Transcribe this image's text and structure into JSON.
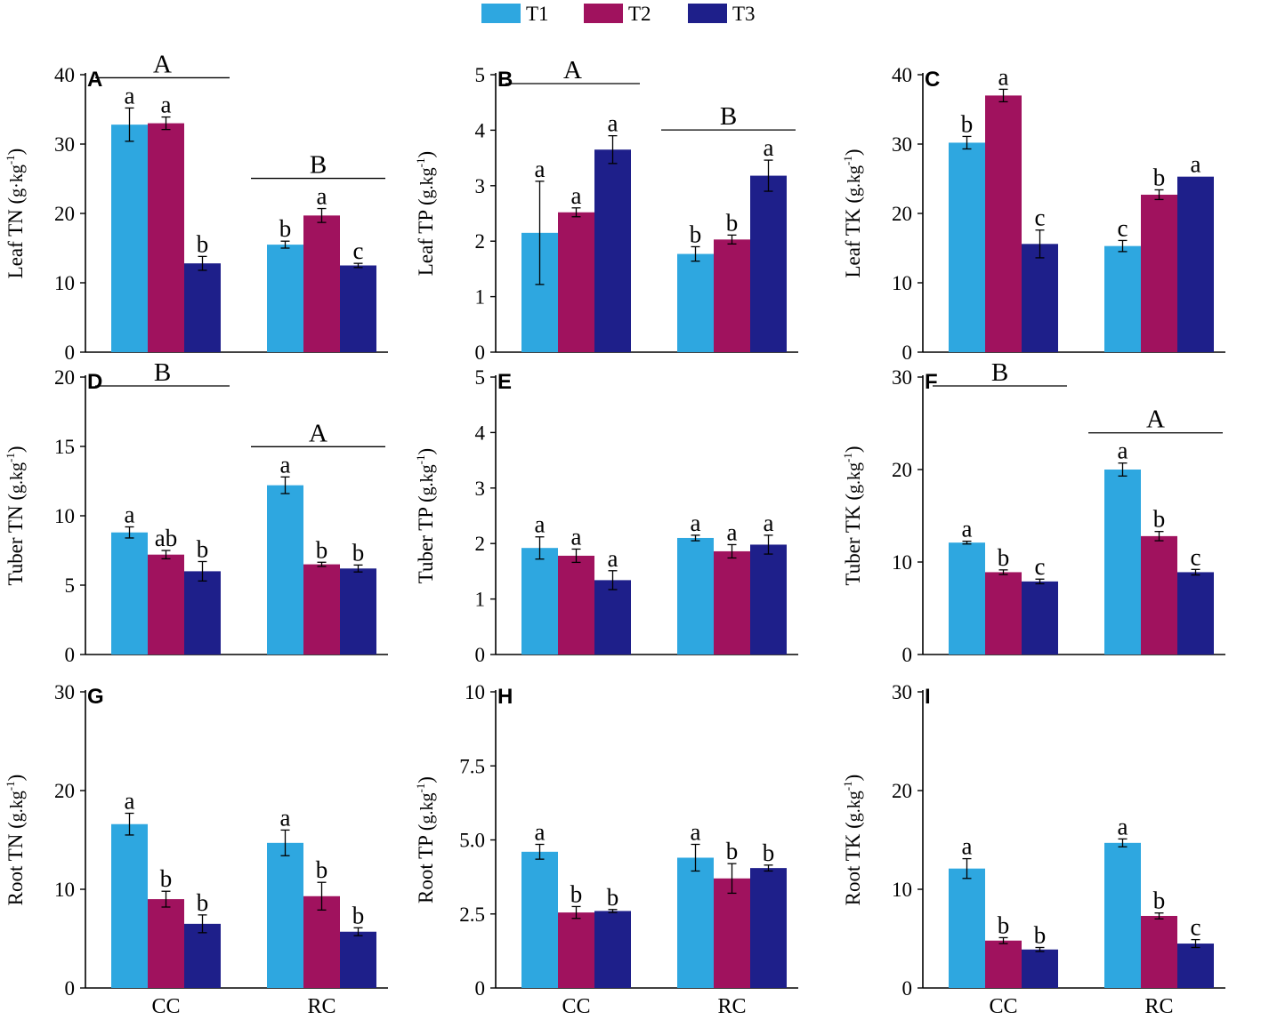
{
  "legend": {
    "items": [
      {
        "label": "T1",
        "color": "#2EA7E0"
      },
      {
        "label": "T2",
        "color": "#A0125E"
      },
      {
        "label": "T3",
        "color": "#1E1F8A"
      }
    ]
  },
  "categories": [
    "CC",
    "RC"
  ],
  "chart_data": [
    {
      "type": "bar",
      "panel": "A",
      "ylabel_main": "Leaf TN",
      "ylabel_unit": "g·kg",
      "ylabel_exp": "-1",
      "ylim": [
        0,
        40
      ],
      "ticks": [
        "0",
        "10",
        "20",
        "30",
        "40"
      ],
      "tick_values": [
        0,
        10,
        20,
        30,
        40
      ],
      "categories": [
        "CC",
        "RC"
      ],
      "series": [
        {
          "name": "T1",
          "values": [
            32.8,
            15.5
          ],
          "errors": [
            2.4,
            0.5
          ],
          "letters": [
            "a",
            "b"
          ]
        },
        {
          "name": "T2",
          "values": [
            33.0,
            19.7
          ],
          "errors": [
            0.9,
            1.0
          ],
          "letters": [
            "a",
            "a"
          ]
        },
        {
          "name": "T3",
          "values": [
            12.8,
            12.5
          ],
          "errors": [
            1.0,
            0.3
          ],
          "letters": [
            "b",
            "c"
          ]
        }
      ],
      "group_labels": [
        "A",
        "B"
      ],
      "show_xticks": false
    },
    {
      "type": "bar",
      "panel": "B",
      "ylabel_main": "Leaf TP",
      "ylabel_unit": "g.kg",
      "ylabel_exp": "-1",
      "ylim": [
        0,
        5
      ],
      "ticks": [
        "0",
        "1",
        "2",
        "3",
        "4",
        "5"
      ],
      "tick_values": [
        0,
        1,
        2,
        3,
        4,
        5
      ],
      "categories": [
        "CC",
        "RC"
      ],
      "series": [
        {
          "name": "T1",
          "values": [
            2.15,
            1.77
          ],
          "errors": [
            0.93,
            0.13
          ],
          "letters": [
            "a",
            "b"
          ]
        },
        {
          "name": "T2",
          "values": [
            2.52,
            2.03
          ],
          "errors": [
            0.08,
            0.08
          ],
          "letters": [
            "a",
            "b"
          ]
        },
        {
          "name": "T3",
          "values": [
            3.65,
            3.18
          ],
          "errors": [
            0.25,
            0.28
          ],
          "letters": [
            "a",
            "a"
          ]
        }
      ],
      "group_labels": [
        "A",
        "B"
      ],
      "show_xticks": false
    },
    {
      "type": "bar",
      "panel": "C",
      "ylabel_main": "Leaf TK",
      "ylabel_unit": "g.kg",
      "ylabel_exp": "-1",
      "ylim": [
        0,
        40
      ],
      "ticks": [
        "0",
        "10",
        "20",
        "30",
        "40"
      ],
      "tick_values": [
        0,
        10,
        20,
        30,
        40
      ],
      "categories": [
        "CC",
        "RC"
      ],
      "series": [
        {
          "name": "T1",
          "values": [
            30.2,
            15.3
          ],
          "errors": [
            0.9,
            0.8
          ],
          "letters": [
            "b",
            "c"
          ]
        },
        {
          "name": "T2",
          "values": [
            37.0,
            22.7
          ],
          "errors": [
            0.9,
            0.7
          ],
          "letters": [
            "a",
            "b"
          ]
        },
        {
          "name": "T3",
          "values": [
            15.6,
            25.3
          ],
          "errors": [
            2.0,
            0.0
          ],
          "letters": [
            "c",
            "a"
          ]
        }
      ],
      "group_labels": [
        "",
        ""
      ],
      "show_xticks": false
    },
    {
      "type": "bar",
      "panel": "D",
      "ylabel_main": "Tuber TN",
      "ylabel_unit": "g.kg",
      "ylabel_exp": "-1",
      "ylim": [
        0,
        20
      ],
      "ticks": [
        "0",
        "5",
        "10",
        "15",
        "20"
      ],
      "tick_values": [
        0,
        5,
        10,
        15,
        20
      ],
      "categories": [
        "CC",
        "RC"
      ],
      "series": [
        {
          "name": "T1",
          "values": [
            8.8,
            12.2
          ],
          "errors": [
            0.4,
            0.6
          ],
          "letters": [
            "a",
            "a"
          ]
        },
        {
          "name": "T2",
          "values": [
            7.2,
            6.5
          ],
          "errors": [
            0.3,
            0.15
          ],
          "letters": [
            "ab",
            "b"
          ]
        },
        {
          "name": "T3",
          "values": [
            6.0,
            6.2
          ],
          "errors": [
            0.7,
            0.25
          ],
          "letters": [
            "b",
            "b"
          ]
        }
      ],
      "group_labels": [
        "B",
        "A"
      ],
      "show_xticks": false
    },
    {
      "type": "bar",
      "panel": "E",
      "ylabel_main": "Tuber TP",
      "ylabel_unit": "g.kg",
      "ylabel_exp": "-1",
      "ylim": [
        0,
        5
      ],
      "ticks": [
        "0",
        "1",
        "2",
        "3",
        "4",
        "5"
      ],
      "tick_values": [
        0,
        1,
        2,
        3,
        4,
        5
      ],
      "categories": [
        "CC",
        "RC"
      ],
      "series": [
        {
          "name": "T1",
          "values": [
            1.92,
            2.1
          ],
          "errors": [
            0.2,
            0.05
          ],
          "letters": [
            "a",
            "a"
          ]
        },
        {
          "name": "T2",
          "values": [
            1.78,
            1.86
          ],
          "errors": [
            0.12,
            0.12
          ],
          "letters": [
            "a",
            "a"
          ]
        },
        {
          "name": "T3",
          "values": [
            1.34,
            1.98
          ],
          "errors": [
            0.17,
            0.17
          ],
          "letters": [
            "a",
            "a"
          ]
        }
      ],
      "group_labels": [
        "",
        ""
      ],
      "show_xticks": false
    },
    {
      "type": "bar",
      "panel": "F",
      "ylabel_main": "Tuber TK",
      "ylabel_unit": "g.kg",
      "ylabel_exp": "-1",
      "ylim": [
        0,
        30
      ],
      "ticks": [
        "0",
        "10",
        "20",
        "30"
      ],
      "tick_values": [
        0,
        10,
        20,
        30
      ],
      "categories": [
        "CC",
        "RC"
      ],
      "series": [
        {
          "name": "T1",
          "values": [
            12.1,
            20.0
          ],
          "errors": [
            0.15,
            0.7
          ],
          "letters": [
            "a",
            "a"
          ]
        },
        {
          "name": "T2",
          "values": [
            8.9,
            12.8
          ],
          "errors": [
            0.25,
            0.5
          ],
          "letters": [
            "b",
            "b"
          ]
        },
        {
          "name": "T3",
          "values": [
            7.9,
            8.9
          ],
          "errors": [
            0.25,
            0.3
          ],
          "letters": [
            "c",
            "c"
          ]
        }
      ],
      "group_labels": [
        "B",
        "A"
      ],
      "show_xticks": false
    },
    {
      "type": "bar",
      "panel": "G",
      "ylabel_main": "Root TN",
      "ylabel_unit": "g.kg",
      "ylabel_exp": "-1",
      "ylim": [
        0,
        30
      ],
      "ticks": [
        "0",
        "10",
        "20",
        "30"
      ],
      "tick_values": [
        0,
        10,
        20,
        30
      ],
      "categories": [
        "CC",
        "RC"
      ],
      "series": [
        {
          "name": "T1",
          "values": [
            16.6,
            14.7
          ],
          "errors": [
            1.1,
            1.3
          ],
          "letters": [
            "a",
            "a"
          ]
        },
        {
          "name": "T2",
          "values": [
            9.0,
            9.3
          ],
          "errors": [
            0.8,
            1.4
          ],
          "letters": [
            "b",
            "b"
          ]
        },
        {
          "name": "T3",
          "values": [
            6.5,
            5.7
          ],
          "errors": [
            0.9,
            0.4
          ],
          "letters": [
            "b",
            "b"
          ]
        }
      ],
      "group_labels": [
        "",
        ""
      ],
      "show_xticks": true
    },
    {
      "type": "bar",
      "panel": "H",
      "ylabel_main": "Root TP",
      "ylabel_unit": "g.kg",
      "ylabel_exp": "-1",
      "ylim": [
        0,
        10
      ],
      "ticks": [
        "0",
        "2.5",
        "5.0",
        "7.5",
        "10"
      ],
      "tick_values": [
        0,
        2.5,
        5.0,
        7.5,
        10
      ],
      "categories": [
        "CC",
        "RC"
      ],
      "series": [
        {
          "name": "T1",
          "values": [
            4.6,
            4.4
          ],
          "errors": [
            0.25,
            0.45
          ],
          "letters": [
            "a",
            "a"
          ]
        },
        {
          "name": "T2",
          "values": [
            2.55,
            3.7
          ],
          "errors": [
            0.2,
            0.5
          ],
          "letters": [
            "b",
            "b"
          ]
        },
        {
          "name": "T3",
          "values": [
            2.6,
            4.05
          ],
          "errors": [
            0.05,
            0.1
          ],
          "letters": [
            "b",
            "b"
          ]
        }
      ],
      "group_labels": [
        "",
        ""
      ],
      "show_xticks": true
    },
    {
      "type": "bar",
      "panel": "I",
      "ylabel_main": "Root TK",
      "ylabel_unit": "g.kg",
      "ylabel_exp": "-1",
      "ylim": [
        0,
        30
      ],
      "ticks": [
        "0",
        "10",
        "20",
        "30"
      ],
      "tick_values": [
        0,
        10,
        20,
        30
      ],
      "categories": [
        "CC",
        "RC"
      ],
      "series": [
        {
          "name": "T1",
          "values": [
            12.1,
            14.7
          ],
          "errors": [
            1.0,
            0.4
          ],
          "letters": [
            "a",
            "a"
          ]
        },
        {
          "name": "T2",
          "values": [
            4.8,
            7.3
          ],
          "errors": [
            0.3,
            0.3
          ],
          "letters": [
            "b",
            "b"
          ]
        },
        {
          "name": "T3",
          "values": [
            3.9,
            4.5
          ],
          "errors": [
            0.2,
            0.4
          ],
          "letters": [
            "b",
            "c"
          ]
        }
      ],
      "group_labels": [
        "",
        ""
      ],
      "show_xticks": true
    }
  ]
}
